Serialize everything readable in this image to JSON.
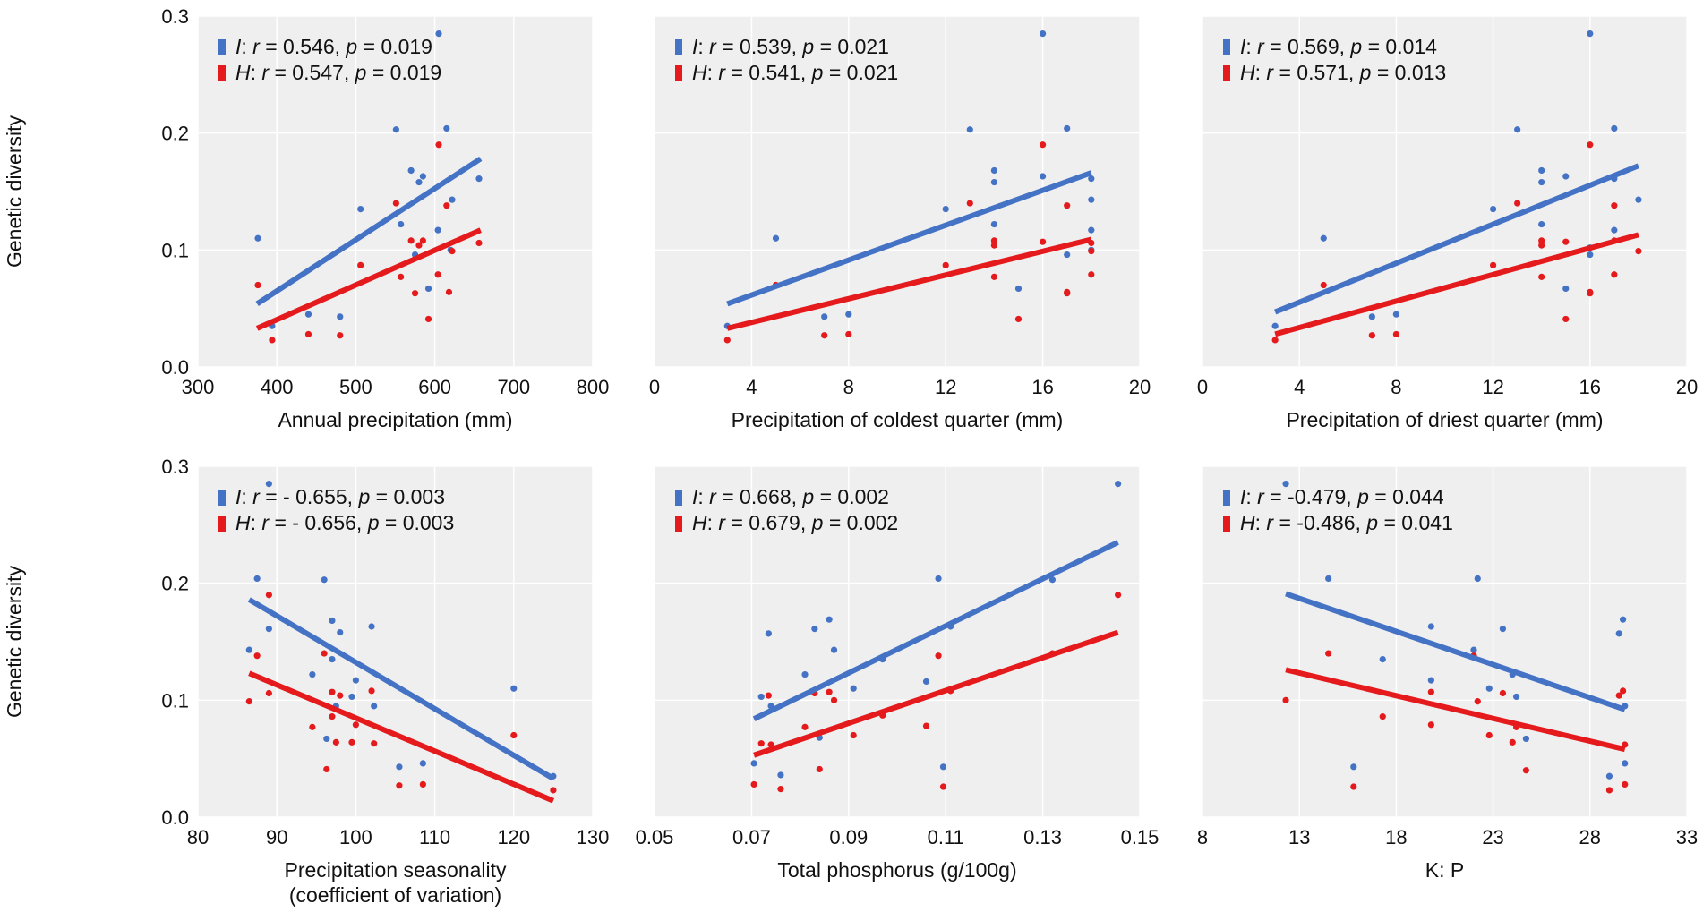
{
  "colors": {
    "I": "#4472C4",
    "H": "#E41A1C",
    "panel_bg": "#EFEFEF",
    "grid": "#FFFFFF"
  },
  "chart_data": [
    {
      "type": "scatter",
      "xlabel": "Annual precipitation (mm)",
      "ylabel": "Genetic diversity",
      "xlim": [
        300,
        800
      ],
      "ylim": [
        0,
        0.3
      ],
      "xticks": [
        "300",
        "400",
        "500",
        "600",
        "700",
        "800"
      ],
      "yticks": [
        "0.0",
        "0.1",
        "0.2",
        "0.3"
      ],
      "legend": [
        {
          "series": "I",
          "letter": "I",
          "r": "0.546",
          "p": "0.019"
        },
        {
          "series": "H",
          "letter": "H",
          "r": "0.547",
          "p": "0.019"
        }
      ],
      "fit": {
        "I": [
          [
            375,
            0.054
          ],
          [
            658,
            0.178
          ]
        ],
        "H": [
          [
            375,
            0.033
          ],
          [
            658,
            0.117
          ]
        ]
      },
      "points": {
        "I": [
          [
            376,
            0.11
          ],
          [
            394,
            0.035
          ],
          [
            440,
            0.045
          ],
          [
            480,
            0.043
          ],
          [
            506,
            0.135
          ],
          [
            551,
            0.203
          ],
          [
            557,
            0.122
          ],
          [
            570,
            0.168
          ],
          [
            575,
            0.096
          ],
          [
            580,
            0.158
          ],
          [
            585,
            0.163
          ],
          [
            592,
            0.067
          ],
          [
            604,
            0.117
          ],
          [
            605,
            0.285
          ],
          [
            615,
            0.204
          ],
          [
            622,
            0.143
          ],
          [
            620,
            0.1
          ],
          [
            656,
            0.161
          ]
        ],
        "H": [
          [
            376,
            0.07
          ],
          [
            394,
            0.023
          ],
          [
            440,
            0.028
          ],
          [
            480,
            0.027
          ],
          [
            506,
            0.087
          ],
          [
            551,
            0.14
          ],
          [
            557,
            0.077
          ],
          [
            570,
            0.108
          ],
          [
            575,
            0.063
          ],
          [
            580,
            0.104
          ],
          [
            585,
            0.108
          ],
          [
            592,
            0.041
          ],
          [
            604,
            0.079
          ],
          [
            605,
            0.19
          ],
          [
            615,
            0.138
          ],
          [
            622,
            0.099
          ],
          [
            618,
            0.064
          ],
          [
            656,
            0.106
          ]
        ]
      }
    },
    {
      "type": "scatter",
      "xlabel": "Precipitation of coldest quarter (mm)",
      "ylabel": "",
      "xlim": [
        0,
        20
      ],
      "ylim": [
        0,
        0.3
      ],
      "xticks": [
        "0",
        "4",
        "8",
        "12",
        "16",
        "20"
      ],
      "yticks": [],
      "legend": [
        {
          "series": "I",
          "letter": "I",
          "r": "0.539",
          "p": "0.021"
        },
        {
          "series": "H",
          "letter": "H",
          "r": "0.541",
          "p": "0.021"
        }
      ],
      "fit": {
        "I": [
          [
            3,
            0.054
          ],
          [
            18,
            0.166
          ]
        ],
        "H": [
          [
            3,
            0.033
          ],
          [
            18,
            0.109
          ]
        ]
      },
      "points": {
        "I": [
          [
            3,
            0.035
          ],
          [
            5,
            0.11
          ],
          [
            7,
            0.043
          ],
          [
            8,
            0.045
          ],
          [
            12,
            0.135
          ],
          [
            13,
            0.203
          ],
          [
            14,
            0.158
          ],
          [
            14,
            0.168
          ],
          [
            14,
            0.122
          ],
          [
            15,
            0.067
          ],
          [
            16,
            0.285
          ],
          [
            16,
            0.163
          ],
          [
            17,
            0.204
          ],
          [
            17,
            0.096
          ],
          [
            18,
            0.161
          ],
          [
            18,
            0.143
          ],
          [
            18,
            0.117
          ],
          [
            18,
            0.1
          ]
        ],
        "H": [
          [
            3,
            0.023
          ],
          [
            5,
            0.07
          ],
          [
            7,
            0.027
          ],
          [
            8,
            0.028
          ],
          [
            12,
            0.087
          ],
          [
            13,
            0.14
          ],
          [
            14,
            0.104
          ],
          [
            14,
            0.108
          ],
          [
            14,
            0.077
          ],
          [
            15,
            0.041
          ],
          [
            16,
            0.19
          ],
          [
            16,
            0.107
          ],
          [
            17,
            0.138
          ],
          [
            17,
            0.063
          ],
          [
            18,
            0.106
          ],
          [
            18,
            0.099
          ],
          [
            18,
            0.079
          ],
          [
            17,
            0.064
          ]
        ]
      }
    },
    {
      "type": "scatter",
      "xlabel": "Precipitation of driest quarter (mm)",
      "ylabel": "",
      "xlim": [
        0,
        20
      ],
      "ylim": [
        0,
        0.3
      ],
      "xticks": [
        "0",
        "4",
        "8",
        "12",
        "16",
        "20"
      ],
      "yticks": [],
      "legend": [
        {
          "series": "I",
          "letter": "I",
          "r": "0.569",
          "p": "0.014"
        },
        {
          "series": "H",
          "letter": "H",
          "r": "0.571",
          "p": "0.013"
        }
      ],
      "fit": {
        "I": [
          [
            3,
            0.047
          ],
          [
            18,
            0.172
          ]
        ],
        "H": [
          [
            3,
            0.028
          ],
          [
            18,
            0.113
          ]
        ]
      },
      "points": {
        "I": [
          [
            3,
            0.035
          ],
          [
            5,
            0.11
          ],
          [
            7,
            0.043
          ],
          [
            8,
            0.045
          ],
          [
            12,
            0.135
          ],
          [
            13,
            0.203
          ],
          [
            14,
            0.158
          ],
          [
            14,
            0.168
          ],
          [
            14,
            0.122
          ],
          [
            15,
            0.067
          ],
          [
            15,
            0.163
          ],
          [
            16,
            0.285
          ],
          [
            16,
            0.102
          ],
          [
            16,
            0.096
          ],
          [
            17,
            0.204
          ],
          [
            17,
            0.161
          ],
          [
            17,
            0.117
          ],
          [
            18,
            0.143
          ]
        ],
        "H": [
          [
            3,
            0.023
          ],
          [
            5,
            0.07
          ],
          [
            7,
            0.027
          ],
          [
            8,
            0.028
          ],
          [
            12,
            0.087
          ],
          [
            13,
            0.14
          ],
          [
            14,
            0.104
          ],
          [
            14,
            0.108
          ],
          [
            14,
            0.077
          ],
          [
            15,
            0.041
          ],
          [
            15,
            0.107
          ],
          [
            16,
            0.19
          ],
          [
            16,
            0.063
          ],
          [
            16,
            0.064
          ],
          [
            17,
            0.138
          ],
          [
            17,
            0.108
          ],
          [
            17,
            0.079
          ],
          [
            18,
            0.099
          ]
        ]
      }
    },
    {
      "type": "scatter",
      "xlabel": "Precipitation seasonality",
      "xlabel2": "(coefficient of variation)",
      "ylabel": "Genetic diversity",
      "xlim": [
        80,
        130
      ],
      "ylim": [
        0,
        0.3
      ],
      "xticks": [
        "80",
        "90",
        "100",
        "110",
        "120",
        "130"
      ],
      "yticks": [
        "0.0",
        "0.1",
        "0.2",
        "0.3"
      ],
      "legend": [
        {
          "series": "I",
          "letter": "I",
          "r": "- 0.655",
          "p": "0.003"
        },
        {
          "series": "H",
          "letter": "H",
          "r": "- 0.656",
          "p": "0.003"
        }
      ],
      "fit": {
        "I": [
          [
            86.5,
            0.186
          ],
          [
            125,
            0.033
          ]
        ],
        "H": [
          [
            86.5,
            0.123
          ],
          [
            125,
            0.014
          ]
        ]
      },
      "points": {
        "I": [
          [
            86.5,
            0.143
          ],
          [
            87.5,
            0.204
          ],
          [
            89,
            0.285
          ],
          [
            89,
            0.161
          ],
          [
            94.5,
            0.122
          ],
          [
            96,
            0.203
          ],
          [
            96.3,
            0.067
          ],
          [
            97,
            0.135
          ],
          [
            97,
            0.168
          ],
          [
            97.5,
            0.095
          ],
          [
            98,
            0.158
          ],
          [
            99.5,
            0.103
          ],
          [
            100,
            0.117
          ],
          [
            102,
            0.163
          ],
          [
            102.3,
            0.095
          ],
          [
            105.5,
            0.043
          ],
          [
            108.5,
            0.046
          ],
          [
            120,
            0.11
          ],
          [
            125,
            0.035
          ]
        ],
        "H": [
          [
            86.5,
            0.099
          ],
          [
            87.5,
            0.138
          ],
          [
            89,
            0.19
          ],
          [
            89,
            0.106
          ],
          [
            94.5,
            0.077
          ],
          [
            96,
            0.14
          ],
          [
            96.3,
            0.041
          ],
          [
            97,
            0.107
          ],
          [
            97,
            0.086
          ],
          [
            97.5,
            0.064
          ],
          [
            98,
            0.104
          ],
          [
            99.5,
            0.064
          ],
          [
            100,
            0.079
          ],
          [
            102,
            0.108
          ],
          [
            102.3,
            0.063
          ],
          [
            105.5,
            0.027
          ],
          [
            108.5,
            0.028
          ],
          [
            120,
            0.07
          ],
          [
            125,
            0.023
          ]
        ]
      }
    },
    {
      "type": "scatter",
      "xlabel": "Total phosphorus (g/100g)",
      "ylabel": "",
      "xlim": [
        0.05,
        0.15
      ],
      "ylim": [
        0,
        0.3
      ],
      "xticks": [
        "0.05",
        "0.07",
        "0.09",
        "0.11",
        "0.13",
        "0.15"
      ],
      "yticks": [],
      "legend": [
        {
          "series": "I",
          "letter": "I",
          "r": "0.668",
          "p": "0.002"
        },
        {
          "series": "H",
          "letter": "H",
          "r": "0.679",
          "p": "0.002"
        }
      ],
      "fit": {
        "I": [
          [
            0.0705,
            0.084
          ],
          [
            0.1455,
            0.235
          ]
        ],
        "H": [
          [
            0.0705,
            0.053
          ],
          [
            0.1455,
            0.158
          ]
        ]
      },
      "points": {
        "I": [
          [
            0.0705,
            0.046
          ],
          [
            0.072,
            0.103
          ],
          [
            0.0735,
            0.157
          ],
          [
            0.074,
            0.095
          ],
          [
            0.076,
            0.036
          ],
          [
            0.081,
            0.122
          ],
          [
            0.083,
            0.161
          ],
          [
            0.084,
            0.068
          ],
          [
            0.086,
            0.169
          ],
          [
            0.087,
            0.143
          ],
          [
            0.091,
            0.11
          ],
          [
            0.097,
            0.135
          ],
          [
            0.106,
            0.116
          ],
          [
            0.1085,
            0.204
          ],
          [
            0.1095,
            0.043
          ],
          [
            0.111,
            0.163
          ],
          [
            0.132,
            0.203
          ],
          [
            0.1455,
            0.285
          ]
        ],
        "H": [
          [
            0.0705,
            0.028
          ],
          [
            0.072,
            0.063
          ],
          [
            0.0735,
            0.104
          ],
          [
            0.074,
            0.062
          ],
          [
            0.076,
            0.024
          ],
          [
            0.081,
            0.077
          ],
          [
            0.083,
            0.106
          ],
          [
            0.084,
            0.041
          ],
          [
            0.086,
            0.107
          ],
          [
            0.087,
            0.1
          ],
          [
            0.091,
            0.07
          ],
          [
            0.097,
            0.087
          ],
          [
            0.106,
            0.078
          ],
          [
            0.1085,
            0.138
          ],
          [
            0.1095,
            0.026
          ],
          [
            0.111,
            0.108
          ],
          [
            0.132,
            0.14
          ],
          [
            0.1455,
            0.19
          ]
        ]
      }
    },
    {
      "type": "scatter",
      "xlabel": "K: P",
      "ylabel": "",
      "xlim": [
        8,
        33
      ],
      "ylim": [
        0,
        0.3
      ],
      "xticks": [
        "8",
        "13",
        "18",
        "23",
        "28",
        "33"
      ],
      "yticks": [],
      "legend": [
        {
          "series": "I",
          "letter": "I",
          "r": "-0.479",
          "p": "0.044"
        },
        {
          "series": "H",
          "letter": "H",
          "r": "-0.486",
          "p": "0.041"
        }
      ],
      "fit": {
        "I": [
          [
            12.3,
            0.191
          ],
          [
            29.8,
            0.092
          ]
        ],
        "H": [
          [
            12.3,
            0.126
          ],
          [
            29.8,
            0.058
          ]
        ]
      },
      "points": {
        "I": [
          [
            12.3,
            0.285
          ],
          [
            14.5,
            0.204
          ],
          [
            15.8,
            0.043
          ],
          [
            17.3,
            0.135
          ],
          [
            19.8,
            0.163
          ],
          [
            19.8,
            0.117
          ],
          [
            22,
            0.143
          ],
          [
            22.2,
            0.204
          ],
          [
            22.8,
            0.11
          ],
          [
            23.5,
            0.161
          ],
          [
            24,
            0.122
          ],
          [
            24.2,
            0.103
          ],
          [
            24.7,
            0.067
          ],
          [
            29,
            0.035
          ],
          [
            29.5,
            0.157
          ],
          [
            29.7,
            0.169
          ],
          [
            29.8,
            0.095
          ],
          [
            29.8,
            0.046
          ]
        ],
        "H": [
          [
            12.3,
            0.1
          ],
          [
            14.5,
            0.14
          ],
          [
            15.8,
            0.026
          ],
          [
            17.3,
            0.086
          ],
          [
            19.8,
            0.107
          ],
          [
            19.8,
            0.079
          ],
          [
            22,
            0.138
          ],
          [
            22.2,
            0.099
          ],
          [
            22.8,
            0.07
          ],
          [
            23.5,
            0.106
          ],
          [
            24,
            0.064
          ],
          [
            24.2,
            0.077
          ],
          [
            24.7,
            0.04
          ],
          [
            29,
            0.023
          ],
          [
            29.5,
            0.104
          ],
          [
            29.7,
            0.108
          ],
          [
            29.8,
            0.062
          ],
          [
            29.8,
            0.028
          ]
        ]
      }
    }
  ]
}
